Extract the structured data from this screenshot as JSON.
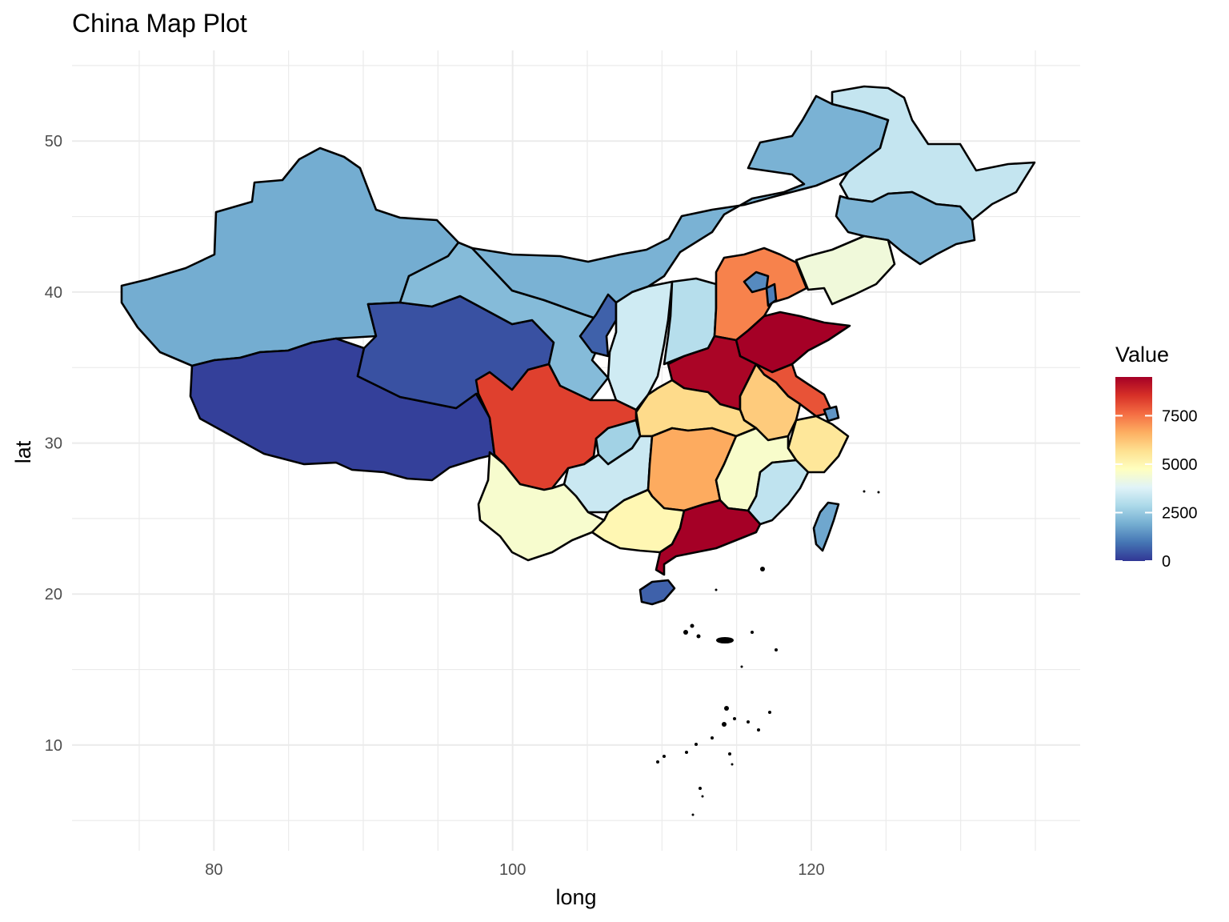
{
  "chart_data": {
    "type": "choropleth map",
    "title": "China Map Plot",
    "xlabel": "long",
    "ylabel": "lat",
    "xlim": [
      70.5,
      138
    ],
    "ylim": [
      3,
      56
    ],
    "x_ticks": [
      80,
      100,
      120
    ],
    "y_ticks": [
      10,
      20,
      30,
      40,
      50
    ],
    "grid": true,
    "legend": {
      "title": "Value",
      "position": "right",
      "breaks": [
        0,
        2500,
        5000,
        7500
      ],
      "range": [
        0,
        9500
      ],
      "palette": [
        "#313695",
        "#4575b4",
        "#74add1",
        "#abd9e9",
        "#e0f3f8",
        "#ffffbf",
        "#fee090",
        "#fdae61",
        "#f46d43",
        "#d73027",
        "#a50026"
      ]
    },
    "regions": [
      {
        "id": "xinjiang",
        "value": 1900
      },
      {
        "id": "tibet",
        "value": 150
      },
      {
        "id": "qinghai",
        "value": 400
      },
      {
        "id": "gansu",
        "value": 2200
      },
      {
        "id": "inner-mongolia",
        "value": 2000
      },
      {
        "id": "heilongjiang",
        "value": 3300
      },
      {
        "id": "jilin",
        "value": 2050
      },
      {
        "id": "liaoning",
        "value": 4300
      },
      {
        "id": "ningxia",
        "value": 650
      },
      {
        "id": "shaanxi",
        "value": 3500
      },
      {
        "id": "shanxi",
        "value": 3050
      },
      {
        "id": "hebei",
        "value": 7300
      },
      {
        "id": "beijing",
        "value": 1300
      },
      {
        "id": "tianjin",
        "value": 1100
      },
      {
        "id": "shandong",
        "value": 9600
      },
      {
        "id": "henan",
        "value": 9400
      },
      {
        "id": "jiangsu",
        "value": 8000
      },
      {
        "id": "anhui",
        "value": 6100
      },
      {
        "id": "shanghai",
        "value": 1500
      },
      {
        "id": "zhejiang",
        "value": 5500
      },
      {
        "id": "hubei",
        "value": 5800
      },
      {
        "id": "sichuan",
        "value": 8300
      },
      {
        "id": "chongqing",
        "value": 2700
      },
      {
        "id": "guizhou",
        "value": 3400
      },
      {
        "id": "yunnan",
        "value": 4500
      },
      {
        "id": "hunan",
        "value": 6700
      },
      {
        "id": "jiangxi",
        "value": 4550
      },
      {
        "id": "fujian",
        "value": 3200
      },
      {
        "id": "guangxi",
        "value": 5000
      },
      {
        "id": "guangdong",
        "value": 9500
      },
      {
        "id": "hainan",
        "value": 650
      },
      {
        "id": "taiwan",
        "value": 1800
      }
    ]
  }
}
